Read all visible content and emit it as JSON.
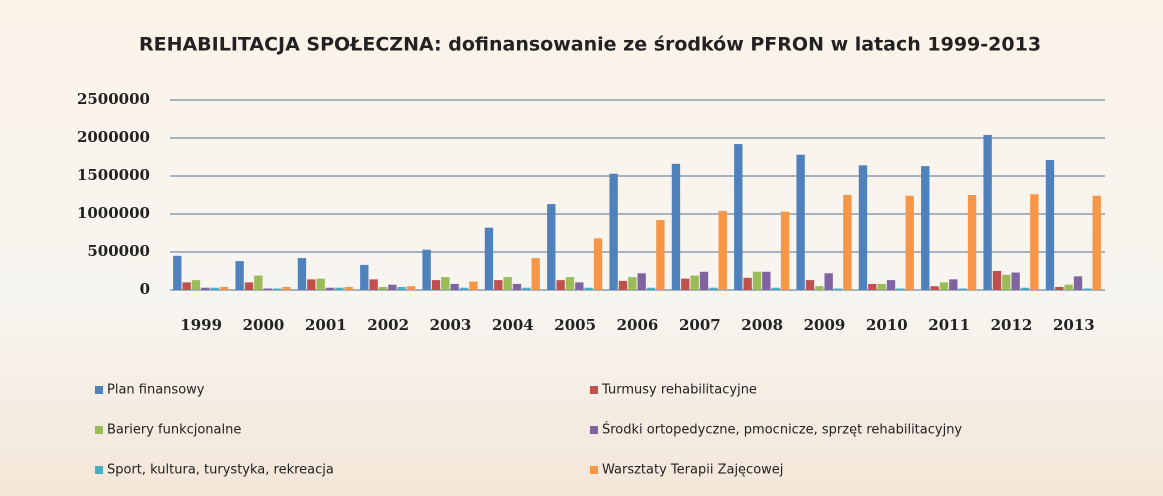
{
  "chart_data": {
    "type": "bar",
    "title": "REHABILITACJA SPOŁECZNA: dofinansowanie ze środków PFRON w latach 1999-2013",
    "categories": [
      "1999",
      "2000",
      "2001",
      "2002",
      "2003",
      "2004",
      "2005",
      "2006",
      "2007",
      "2008",
      "2009",
      "2010",
      "2011",
      "2012",
      "2013"
    ],
    "series": [
      {
        "name": "Plan finansowy",
        "color": "#4f81bd",
        "values": [
          450000,
          380000,
          420000,
          330000,
          530000,
          820000,
          1130000,
          1530000,
          1660000,
          1920000,
          1780000,
          1640000,
          1630000,
          2040000,
          1710000
        ]
      },
      {
        "name": "Turmusy rehabilitacyjne",
        "color": "#c0504d",
        "values": [
          100000,
          100000,
          140000,
          140000,
          130000,
          130000,
          130000,
          120000,
          150000,
          160000,
          130000,
          80000,
          50000,
          250000,
          40000
        ]
      },
      {
        "name": "Bariery funkcjonalne",
        "color": "#9bbb59",
        "values": [
          130000,
          190000,
          150000,
          40000,
          170000,
          170000,
          170000,
          170000,
          190000,
          240000,
          50000,
          80000,
          100000,
          200000,
          70000
        ]
      },
      {
        "name": "Środki ortopedyczne, pmocnicze, sprzęt rehabilitacyjny",
        "color": "#8064a2",
        "values": [
          30000,
          20000,
          30000,
          70000,
          80000,
          80000,
          100000,
          220000,
          240000,
          240000,
          220000,
          130000,
          140000,
          230000,
          180000
        ]
      },
      {
        "name": "Sport, kultura, turystyka, rekreacja",
        "color": "#4bacc6",
        "values": [
          30000,
          20000,
          30000,
          40000,
          30000,
          30000,
          30000,
          30000,
          30000,
          30000,
          20000,
          20000,
          20000,
          30000,
          20000
        ]
      },
      {
        "name": "Warsztaty Terapii Zajęcowej",
        "color": "#f79646",
        "values": [
          40000,
          40000,
          40000,
          50000,
          110000,
          420000,
          680000,
          920000,
          1040000,
          1030000,
          1250000,
          1240000,
          1250000,
          1260000,
          1240000
        ]
      }
    ],
    "ylim": [
      0,
      2500000
    ],
    "yticks": [
      0,
      500000,
      1000000,
      1500000,
      2000000,
      2500000
    ],
    "grid": true
  }
}
